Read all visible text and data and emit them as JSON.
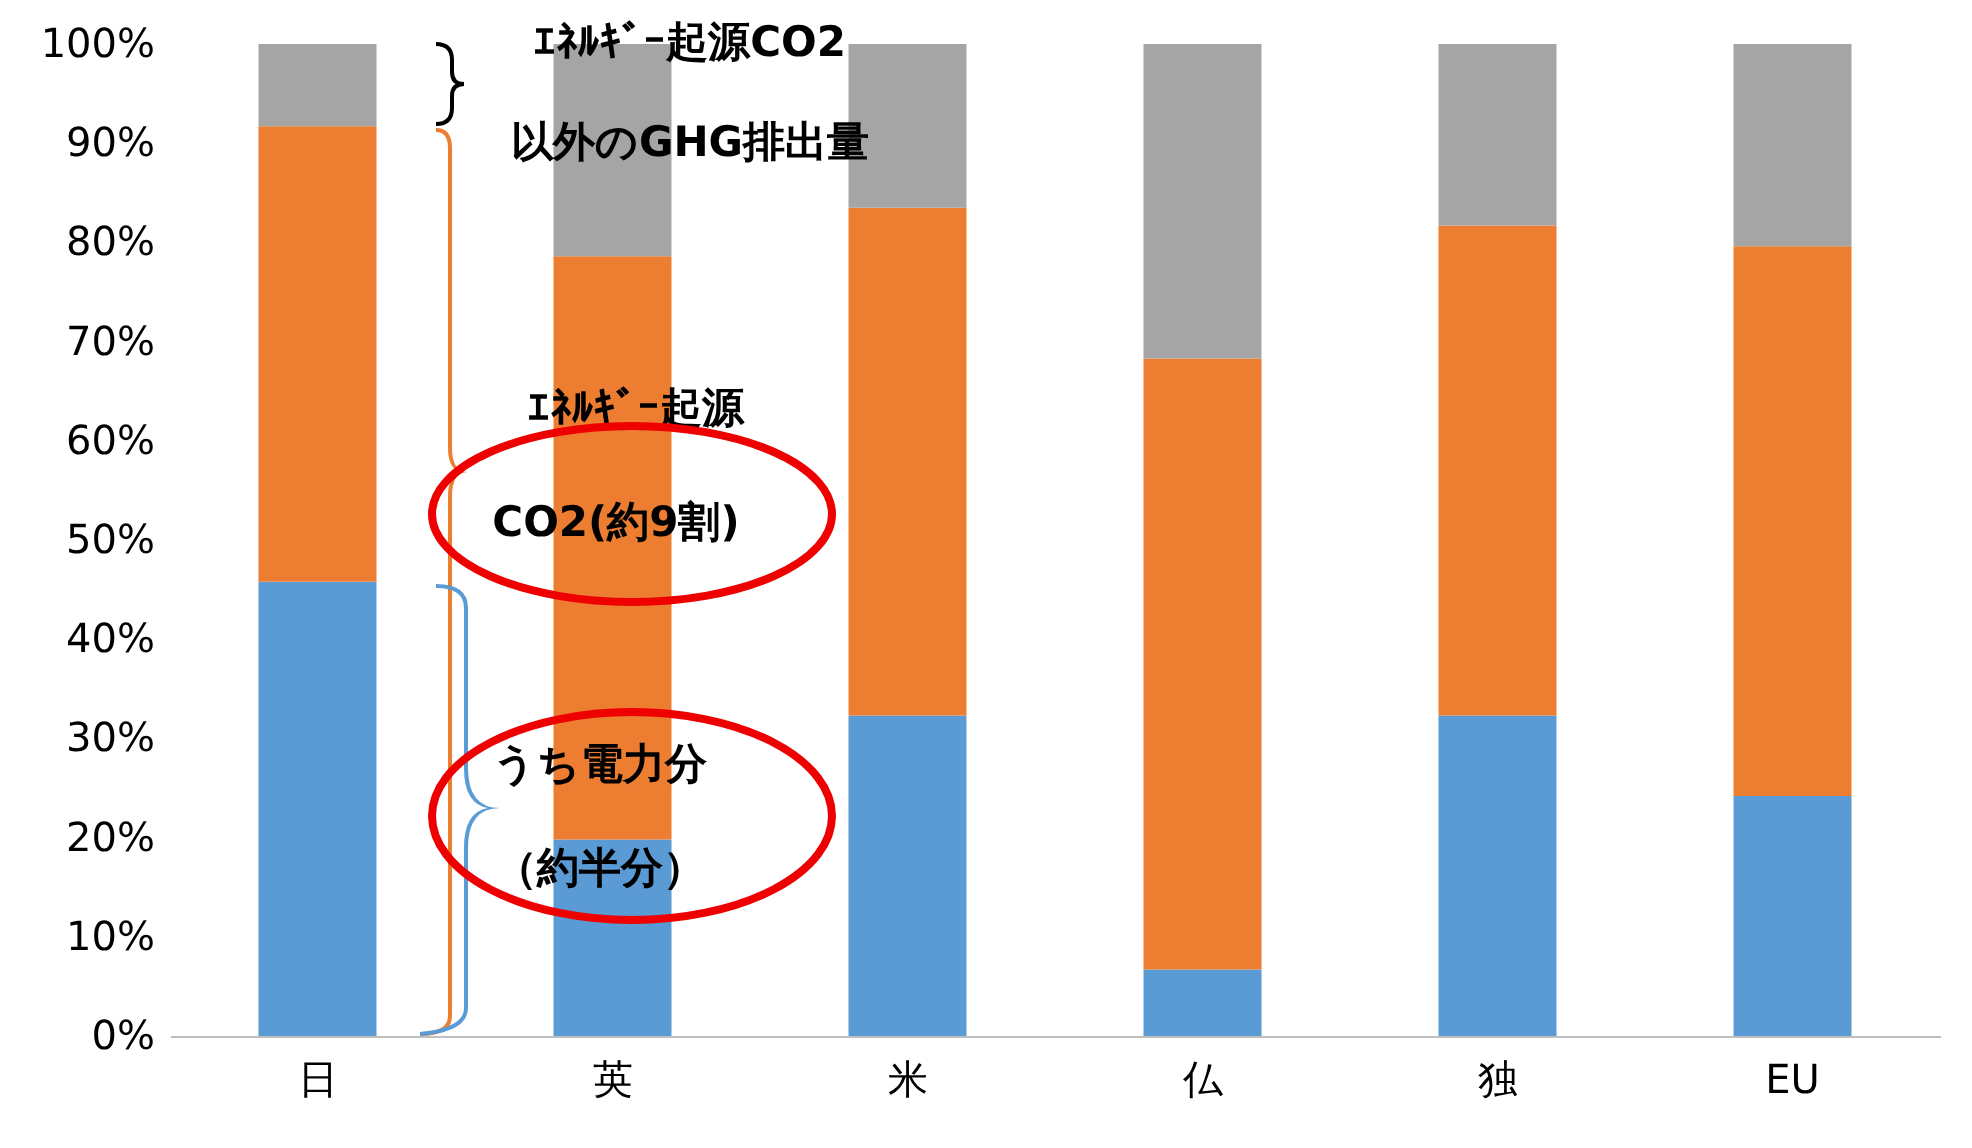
{
  "chart_data": {
    "type": "bar",
    "stacked": true,
    "categories": [
      "日",
      "英",
      "米",
      "仏",
      "独",
      "EU"
    ],
    "series": [
      {
        "color": "#5b9bd5",
        "values": [
          45.8,
          19.8,
          32.3,
          6.7,
          32.3,
          24.2
        ]
      },
      {
        "color": "#ed7d31",
        "values": [
          45.9,
          58.8,
          51.2,
          61.6,
          49.4,
          55.4
        ]
      },
      {
        "color": "#a5a5a5",
        "values": [
          8.3,
          21.4,
          16.5,
          31.7,
          18.3,
          20.4
        ]
      }
    ],
    "ylim": [
      0,
      100
    ],
    "yticks": [
      {
        "value": 0,
        "label": "0%"
      },
      {
        "value": 10,
        "label": "10%"
      },
      {
        "value": 20,
        "label": "20%"
      },
      {
        "value": 30,
        "label": "30%"
      },
      {
        "value": 40,
        "label": "40%"
      },
      {
        "value": 50,
        "label": "50%"
      },
      {
        "value": 60,
        "label": "60%"
      },
      {
        "value": 70,
        "label": "70%"
      },
      {
        "value": 80,
        "label": "80%"
      },
      {
        "value": 90,
        "label": "90%"
      },
      {
        "value": 100,
        "label": "100%"
      }
    ],
    "annotations": [
      "ｴﾈﾙｷﾞｰ起源CO2",
      "以外のGHG排出量",
      "ｴﾈﾙｷﾞｰ起源",
      "CO2(約9割)",
      "うち電力分",
      "（約半分）"
    ]
  }
}
